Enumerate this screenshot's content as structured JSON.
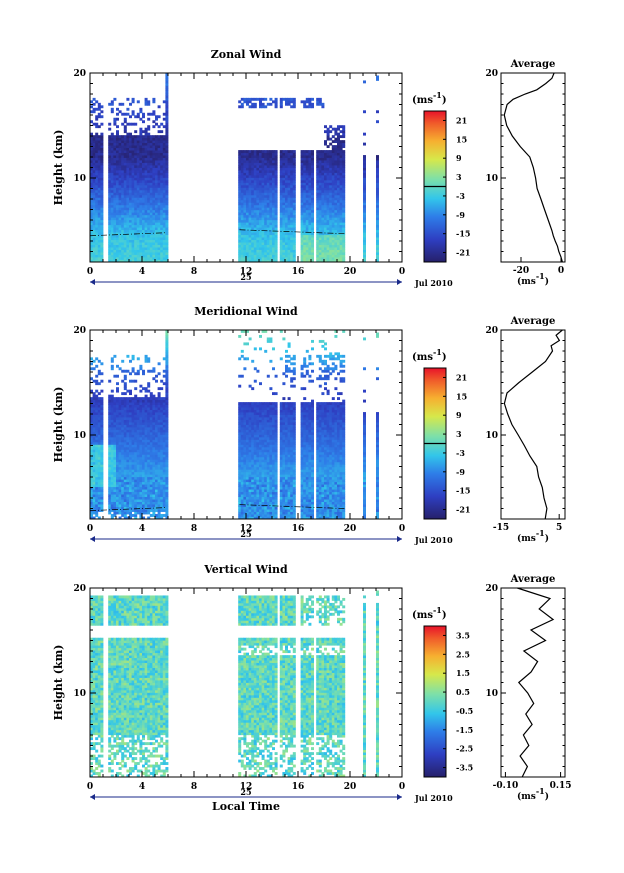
{
  "chart_data": [
    {
      "type": "heatmap",
      "title": "Zonal Wind",
      "ylabel": "Height (km)",
      "ylim": [
        2,
        20
      ],
      "y_ticks": [
        {
          "v": 10,
          "label": "10"
        },
        {
          "v": 20,
          "label": "20"
        }
      ],
      "x_ticks": [
        "0",
        "4",
        "8",
        "12",
        "16",
        "20",
        "0"
      ],
      "x_date": "25",
      "x_month": "Jul 2010",
      "colorbar": {
        "unit_label": "(ms",
        "unit_exp": "-1",
        "unit_close": ")",
        "range": [
          -24,
          24
        ],
        "ticks": [
          21,
          15,
          9,
          3,
          -3,
          -9,
          -15,
          -21
        ],
        "tick_labels": [
          "21",
          "15",
          "9",
          "3",
          "-3",
          "-9",
          "-15",
          "-21"
        ],
        "zero_line": 0
      },
      "data_blocks": [
        {
          "t_start": 0.0,
          "t_end": 5.8,
          "value_range": [
            -22,
            5
          ]
        },
        {
          "t_start": 11.5,
          "t_end": 19.7,
          "value_range": [
            -22,
            5
          ]
        },
        {
          "t_start": 21.0,
          "t_end": 23.6,
          "value_range": [
            -22,
            5
          ]
        }
      ],
      "average": {
        "title": "Average",
        "xlabel": "(ms",
        "xlabel_exp": "-1",
        "xlabel_close": ")",
        "xlim": [
          -30,
          2
        ],
        "x_ticks": [
          {
            "v": -20,
            "label": "-20"
          },
          {
            "v": 0,
            "label": "0"
          }
        ],
        "y_ticks": [
          {
            "v": 10,
            "label": "10"
          },
          {
            "v": 20,
            "label": "20"
          }
        ],
        "profile": [
          [
            1,
            2
          ],
          [
            0,
            2.5
          ],
          [
            -1,
            3
          ],
          [
            -2,
            3.5
          ],
          [
            -3,
            4
          ],
          [
            -4,
            4.5
          ],
          [
            -5,
            5
          ],
          [
            -6,
            6
          ],
          [
            -8,
            7
          ],
          [
            -10,
            8
          ],
          [
            -12,
            9
          ],
          [
            -13,
            10
          ],
          [
            -14,
            11
          ],
          [
            -16,
            12
          ],
          [
            -20,
            13
          ],
          [
            -24,
            14
          ],
          [
            -27,
            15
          ],
          [
            -28,
            16
          ],
          [
            -27,
            17
          ],
          [
            -24,
            17.5
          ],
          [
            -18,
            18
          ],
          [
            -12,
            18.4
          ],
          [
            -8,
            19
          ],
          [
            -5,
            19.5
          ],
          [
            -3,
            20
          ]
        ]
      }
    },
    {
      "type": "heatmap",
      "title": "Meridional Wind",
      "ylabel": "Height (km)",
      "ylim": [
        2,
        20
      ],
      "y_ticks": [
        {
          "v": 10,
          "label": "10"
        },
        {
          "v": 20,
          "label": "20"
        }
      ],
      "x_ticks": [
        "0",
        "4",
        "8",
        "12",
        "16",
        "20",
        "0"
      ],
      "x_date": "25",
      "x_month": "Jul 2010",
      "colorbar": {
        "unit_label": "(ms",
        "unit_exp": "-1",
        "unit_close": ")",
        "range": [
          -24,
          24
        ],
        "ticks": [
          21,
          15,
          9,
          3,
          -3,
          -9,
          -15,
          -21
        ],
        "tick_labels": [
          "21",
          "15",
          "9",
          "3",
          "-3",
          "-9",
          "-15",
          "-21"
        ],
        "zero_line": 0
      },
      "data_blocks": [
        {
          "t_start": 0.0,
          "t_end": 5.8,
          "value_range": [
            -18,
            5
          ]
        },
        {
          "t_start": 11.5,
          "t_end": 19.7,
          "value_range": [
            -18,
            8
          ]
        },
        {
          "t_start": 21.0,
          "t_end": 23.6,
          "value_range": [
            -18,
            8
          ]
        }
      ],
      "average": {
        "title": "Average",
        "xlabel": "(ms",
        "xlabel_exp": "-1",
        "xlabel_close": ")",
        "xlim": [
          -15,
          7
        ],
        "x_ticks": [
          {
            "v": -15,
            "label": "-15"
          },
          {
            "v": 5,
            "label": "5"
          }
        ],
        "y_ticks": [
          {
            "v": 10,
            "label": "10"
          },
          {
            "v": 20,
            "label": "20"
          }
        ],
        "profile": [
          [
            0,
            2
          ],
          [
            1,
            3
          ],
          [
            0,
            4
          ],
          [
            -1,
            5
          ],
          [
            -2,
            6
          ],
          [
            -3,
            7
          ],
          [
            -5,
            8
          ],
          [
            -7,
            9
          ],
          [
            -9,
            10
          ],
          [
            -11,
            11
          ],
          [
            -13,
            12
          ],
          [
            -14,
            13
          ],
          [
            -13,
            14
          ],
          [
            -9,
            15
          ],
          [
            -4,
            16
          ],
          [
            0,
            17
          ],
          [
            3,
            18
          ],
          [
            2,
            18.5
          ],
          [
            5,
            19
          ],
          [
            4,
            19.5
          ],
          [
            6,
            20
          ]
        ]
      }
    },
    {
      "type": "heatmap",
      "title": "Vertical Wind",
      "ylabel": "Height (km)",
      "ylim": [
        2,
        20
      ],
      "y_ticks": [
        {
          "v": 10,
          "label": "10"
        },
        {
          "v": 20,
          "label": "20"
        }
      ],
      "x_ticks": [
        "0",
        "4",
        "8",
        "12",
        "16",
        "20",
        "0"
      ],
      "x_date": "25",
      "x_month": "Jul 2010",
      "xlabel": "Local Time",
      "colorbar": {
        "unit_label": "(ms",
        "unit_exp": "-1",
        "unit_close": ")",
        "range": [
          -4,
          4
        ],
        "ticks": [
          3.5,
          2.5,
          1.5,
          0.5,
          -0.5,
          -1.5,
          -2.5,
          -3.5
        ],
        "tick_labels": [
          "3.5",
          "2.5",
          "1.5",
          "0.5",
          "-0.5",
          "-1.5",
          "-2.5",
          "-3.5"
        ]
      },
      "data_blocks": [
        {
          "t_start": 0.0,
          "t_end": 5.8,
          "value_range": [
            -1,
            1
          ]
        },
        {
          "t_start": 11.5,
          "t_end": 19.7,
          "value_range": [
            -1,
            1
          ]
        },
        {
          "t_start": 21.0,
          "t_end": 23.6,
          "value_range": [
            -1,
            1
          ]
        }
      ],
      "average": {
        "title": "Average",
        "xlabel": "(ms",
        "xlabel_exp": "-1",
        "xlabel_close": ")",
        "xlim": [
          -0.12,
          0.17
        ],
        "x_ticks": [
          {
            "v": -0.1,
            "label": "-0.10"
          },
          {
            "v": 0.15,
            "label": "0.15"
          }
        ],
        "y_ticks": [
          {
            "v": 10,
            "label": "10"
          },
          {
            "v": 20,
            "label": "20"
          }
        ],
        "profile": [
          [
            -0.02,
            2
          ],
          [
            0.0,
            3
          ],
          [
            -0.03,
            4
          ],
          [
            0.01,
            5
          ],
          [
            -0.02,
            6
          ],
          [
            0.02,
            7
          ],
          [
            -0.01,
            8
          ],
          [
            0.03,
            9
          ],
          [
            0.0,
            10
          ],
          [
            -0.04,
            11
          ],
          [
            0.02,
            12
          ],
          [
            0.05,
            13
          ],
          [
            -0.02,
            14
          ],
          [
            0.08,
            15
          ],
          [
            0.02,
            16
          ],
          [
            0.12,
            17
          ],
          [
            0.05,
            18
          ],
          [
            0.1,
            19
          ],
          [
            -0.05,
            20
          ]
        ]
      }
    }
  ]
}
